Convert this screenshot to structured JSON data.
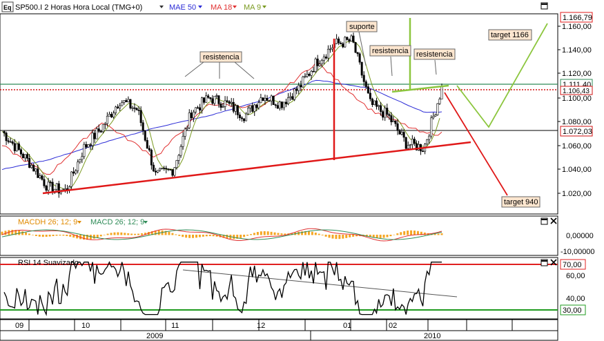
{
  "header": {
    "logo": "Eq",
    "symbol": "SP500.I 2 Horas Hora Local (TMG+0)",
    "ind1": "MAE 50",
    "ind2": "MA 18",
    "ind3": "MA 9"
  },
  "colors": {
    "price": "#000000",
    "mae50": "#2b2bd6",
    "ma18": "#e03030",
    "ma9": "#7a9a20",
    "annot_red": "#e01818",
    "annot_green": "#8cc63e",
    "hline_green": "#2e8b57",
    "rsi_red": "#e02020",
    "rsi_green": "#1e9a1e",
    "macd_hist": "#f5a623",
    "label_bg": "#fde6cf"
  },
  "annotations": {
    "resistencia1": "resistencia",
    "suporte": "suporte",
    "resistencia2": "resistencia",
    "resistencia3": "resistencia",
    "target_up": "target 1166",
    "target_down": "target 940"
  },
  "price_axis": {
    "ticks": [
      "1.160,00",
      "1.140,00",
      "1.120,00",
      "1.100,00",
      "1.080,00",
      "1.060,00",
      "1.040,00",
      "1.020,00"
    ],
    "flags": [
      "1.166,79",
      "1.111,40",
      "1.106,43",
      "1.072,03"
    ]
  },
  "macd_panel": {
    "label1": "MACDH 26; 12; 9",
    "label2": "MACD 26; 12; 9",
    "ticks": [
      "0,00000",
      "-10,00000"
    ]
  },
  "rsi_panel": {
    "label": "RSI 14 Suavizado",
    "ticks": [
      "60,00",
      "40,00"
    ],
    "flags": [
      "70,00",
      "30,00"
    ]
  },
  "time_axis": {
    "months": [
      "09",
      "10",
      "11",
      "12",
      "01",
      "02"
    ],
    "years": [
      "2009",
      "2010"
    ]
  },
  "chart_data": {
    "type": "line",
    "title": "SP500.I 2 Horas Hora Local (TMG+0)",
    "xlabel": "",
    "ylabel": "",
    "ylim": [
      1005,
      1175
    ],
    "x": [
      "09",
      "10",
      "11",
      "12",
      "01",
      "02"
    ],
    "series": [
      {
        "name": "SP500.I",
        "x": [
          "2009-08-31",
          "2009-09-04",
          "2009-09-11",
          "2009-09-18",
          "2009-09-25",
          "2009-10-02",
          "2009-10-09",
          "2009-10-16",
          "2009-10-23",
          "2009-10-30",
          "2009-11-06",
          "2009-11-13",
          "2009-11-20",
          "2009-11-27",
          "2009-12-04",
          "2009-12-11",
          "2009-12-18",
          "2009-12-25",
          "2010-01-01",
          "2010-01-08",
          "2010-01-15",
          "2010-01-22",
          "2010-01-29",
          "2010-02-05",
          "2010-02-12",
          "2010-02-19"
        ],
        "values": [
          1072,
          1062,
          1045,
          1025,
          1022,
          1058,
          1075,
          1098,
          1090,
          1035,
          1040,
          1088,
          1100,
          1095,
          1085,
          1102,
          1095,
          1108,
          1130,
          1145,
          1148,
          1095,
          1085,
          1062,
          1058,
          1108
        ]
      },
      {
        "name": "MAE 50",
        "x": [
          "2009-08-31",
          "2009-09-18",
          "2009-10-09",
          "2009-10-30",
          "2009-11-20",
          "2009-12-11",
          "2010-01-01",
          "2010-01-22",
          "2010-02-12"
        ],
        "values": [
          1040,
          1048,
          1062,
          1075,
          1085,
          1098,
          1115,
          1108,
          1088
        ]
      },
      {
        "name": "MA 18",
        "x": [
          "2009-08-31",
          "2009-09-18",
          "2009-10-09",
          "2009-10-30",
          "2009-11-20",
          "2009-12-11",
          "2010-01-01",
          "2010-01-22",
          "2010-02-12"
        ],
        "values": [
          1060,
          1035,
          1080,
          1050,
          1095,
          1092,
          1130,
          1090,
          1070
        ]
      }
    ],
    "hlines": [
      1111.4,
      1106.43,
      1072.03
    ],
    "targets": [
      1166,
      940
    ]
  }
}
